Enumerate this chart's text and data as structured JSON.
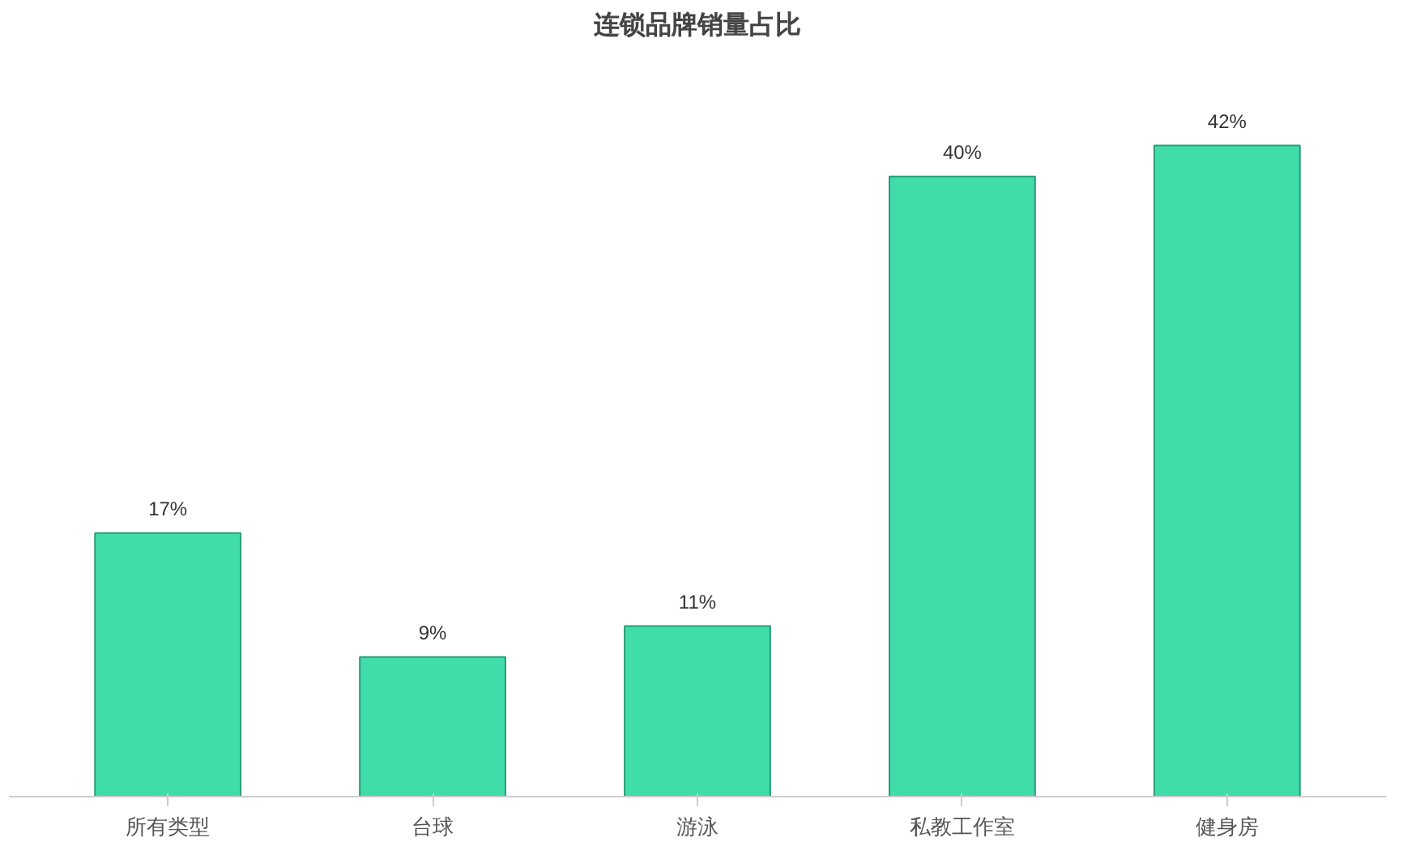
{
  "chart_data": {
    "type": "bar",
    "title": "连锁品牌销量占比",
    "categories": [
      "所有类型",
      "台球",
      "游泳",
      "私教工作室",
      "健身房"
    ],
    "values": [
      17,
      9,
      11,
      40,
      42
    ],
    "value_labels": [
      "17%",
      "9%",
      "11%",
      "40%",
      "42%"
    ],
    "color": "#40dcaa"
  }
}
